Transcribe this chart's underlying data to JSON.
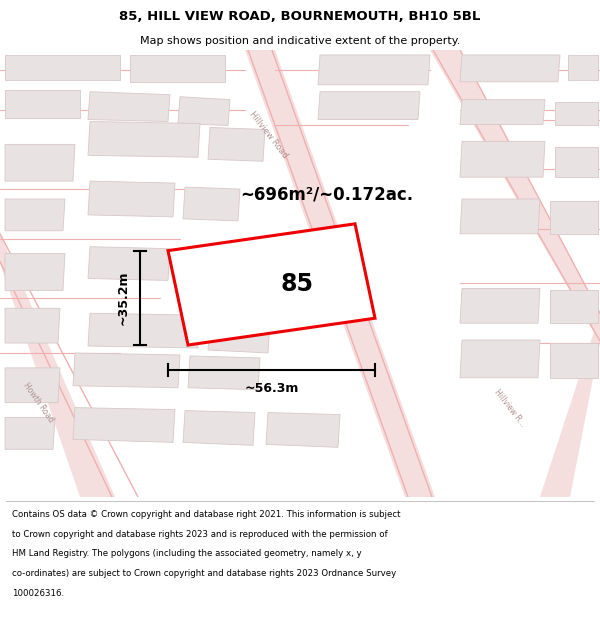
{
  "title_line1": "85, HILL VIEW ROAD, BOURNEMOUTH, BH10 5BL",
  "title_line2": "Map shows position and indicative extent of the property.",
  "footer_lines": [
    "Contains OS data © Crown copyright and database right 2021. This information is subject",
    "to Crown copyright and database rights 2023 and is reproduced with the permission of",
    "HM Land Registry. The polygons (including the associated geometry, namely x, y",
    "co-ordinates) are subject to Crown copyright and database rights 2023 Ordnance Survey",
    "100026316."
  ],
  "bg_color": "#ffffff",
  "map_bg": "#f9f5f5",
  "road_line_color": "#f0b0b0",
  "building_fill": "#e8e2e2",
  "building_edge": "#d8c8c8",
  "highlight_fill": "#ffffff",
  "highlight_stroke": "#ee0000",
  "road_label_color": "#b09090",
  "area_text": "~696m²/~0.172ac.",
  "width_label": "~56.3m",
  "height_label": "~35.2m",
  "number_label": "85"
}
